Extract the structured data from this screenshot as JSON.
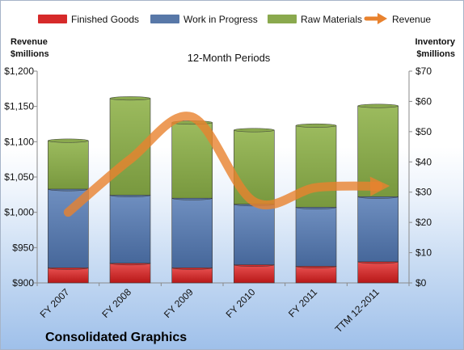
{
  "chart_data": {
    "type": "bar",
    "subtitle": "12-Month Periods",
    "company": "Consolidated Graphics",
    "categories": [
      "FY 2007",
      "FY 2008",
      "FY 2009",
      "FY 2010",
      "FY 2011",
      "TTM 12-2011"
    ],
    "stacked": true,
    "series": [
      {
        "name": "Finished Goods",
        "color": "#d62a2a",
        "values": [
          5,
          6.5,
          5,
          6,
          5.5,
          7
        ]
      },
      {
        "name": "Work in Progress",
        "color": "#5878a8",
        "values": [
          26,
          22.5,
          23,
          20,
          19.5,
          21.5
        ]
      },
      {
        "name": "Raw Materials",
        "color": "#8aa94e",
        "values": [
          16,
          32,
          25,
          24.5,
          27,
          30
        ]
      }
    ],
    "line_series": {
      "name": "Revenue",
      "color": "#e8822e",
      "values": [
        1000,
        1075,
        1135,
        1015,
        1035,
        1037
      ]
    },
    "y_left": {
      "label_line1": "Revenue",
      "label_line2": "$millions",
      "min": 900,
      "max": 1200,
      "step": 50,
      "prefix": "$",
      "thousands": true
    },
    "y_right": {
      "label_line1": "Inventory",
      "label_line2": "$millions",
      "min": 0,
      "max": 70,
      "step": 10,
      "prefix": "$"
    },
    "legend_position": "top",
    "grid": false
  }
}
